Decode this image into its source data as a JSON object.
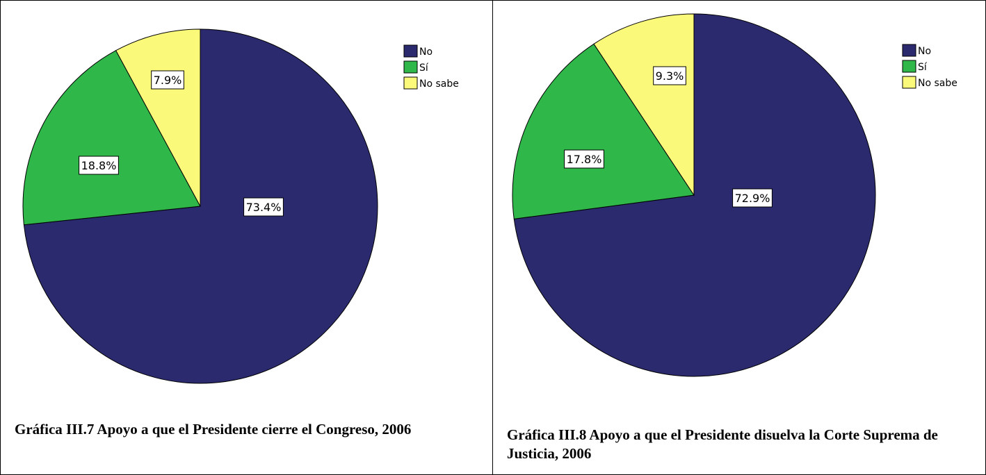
{
  "chart_data": [
    {
      "type": "pie",
      "categories": [
        "No",
        "Sí",
        "No sabe"
      ],
      "values": [
        73.4,
        18.8,
        7.9
      ],
      "data_labels": [
        "73.4%",
        "18.8%",
        "7.9%"
      ],
      "colors": [
        "#2b2a6e",
        "#2fb74a",
        "#fbf97a"
      ],
      "legend": {
        "placement": "top-right",
        "entries": [
          "No",
          "Sí",
          "No sabe"
        ]
      },
      "title": "Gráfica III.7 Apoyo a que el Presidente cierre el Congreso, 2006"
    },
    {
      "type": "pie",
      "categories": [
        "No",
        "Sí",
        "No sabe"
      ],
      "values": [
        72.9,
        17.8,
        9.3
      ],
      "data_labels": [
        "72.9%",
        "17.8%",
        "9.3%"
      ],
      "colors": [
        "#2b2a6e",
        "#2fb74a",
        "#fbf97a"
      ],
      "legend": {
        "placement": "top-right",
        "entries": [
          "No",
          "Sí",
          "No sabe"
        ]
      },
      "title": "Gráfica III.8 Apoyo a que el Presidente disuelva la Corte Suprema de Justicia, 2006"
    }
  ]
}
